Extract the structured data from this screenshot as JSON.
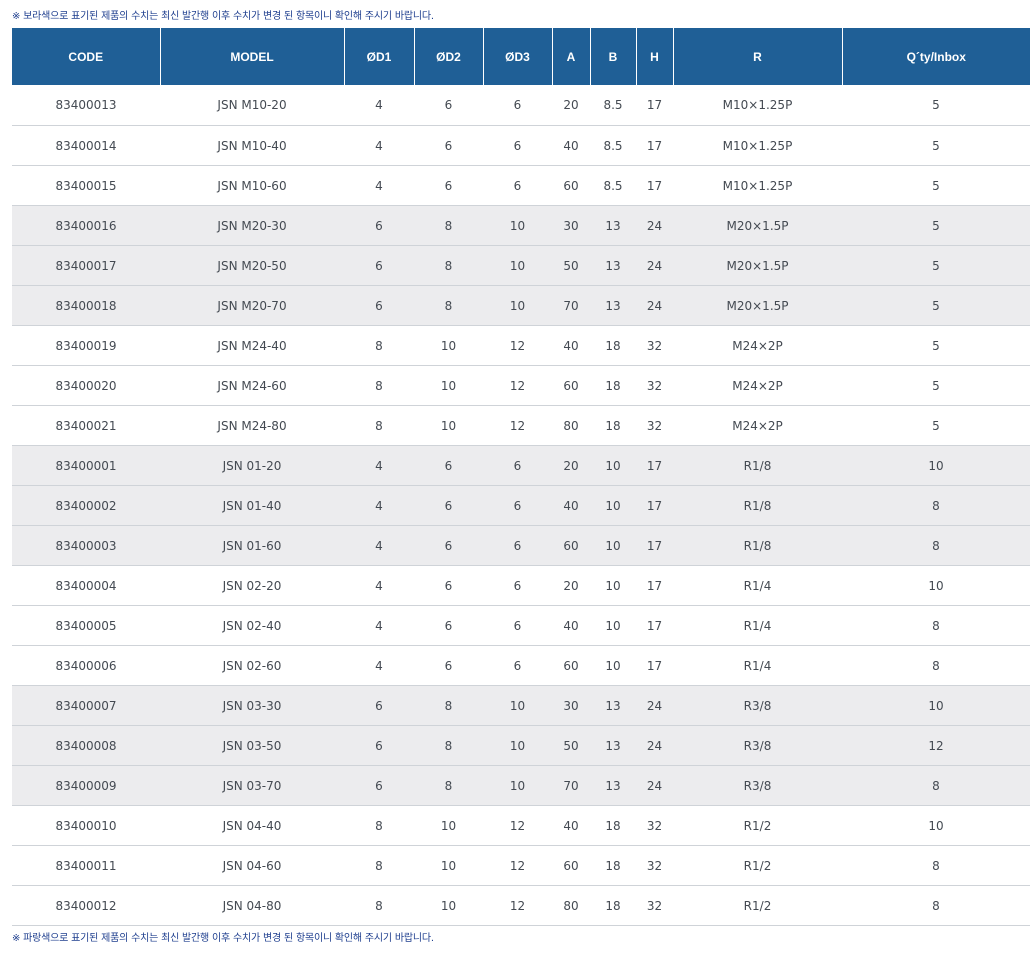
{
  "notes": {
    "top": "※ 보라색으로 표기된 제품의 수치는 최신 발간행 이후 수치가 변경 된 항목이니 확인해 주시기 바랍니다.",
    "bottom": "※ 파랑색으로 표기된 제품의 수치는 최신 발간행 이후 수치가 변경 된 항목이니 확인해 주시기 바랍니다."
  },
  "colors": {
    "header_bg": "#1f5f96",
    "header_text": "#ffffff",
    "note_text": "#1f3f8f",
    "row_shaded": "#ececee",
    "cell_text": "#444a52"
  },
  "table": {
    "headers": [
      "CODE",
      "MODEL",
      "ØD1",
      "ØD2",
      "ØD3",
      "A",
      "B",
      "H",
      "R",
      "Q´ty/Inbox"
    ],
    "rows": [
      {
        "cells": [
          "83400013",
          "JSN M10-20",
          "4",
          "6",
          "6",
          "20",
          "8.5",
          "17",
          "M10×1.25P",
          "5"
        ],
        "shaded": false
      },
      {
        "cells": [
          "83400014",
          "JSN M10-40",
          "4",
          "6",
          "6",
          "40",
          "8.5",
          "17",
          "M10×1.25P",
          "5"
        ],
        "shaded": false
      },
      {
        "cells": [
          "83400015",
          "JSN M10-60",
          "4",
          "6",
          "6",
          "60",
          "8.5",
          "17",
          "M10×1.25P",
          "5"
        ],
        "shaded": false
      },
      {
        "cells": [
          "83400016",
          "JSN M20-30",
          "6",
          "8",
          "10",
          "30",
          "13",
          "24",
          "M20×1.5P",
          "5"
        ],
        "shaded": true
      },
      {
        "cells": [
          "83400017",
          "JSN M20-50",
          "6",
          "8",
          "10",
          "50",
          "13",
          "24",
          "M20×1.5P",
          "5"
        ],
        "shaded": true
      },
      {
        "cells": [
          "83400018",
          "JSN M20-70",
          "6",
          "8",
          "10",
          "70",
          "13",
          "24",
          "M20×1.5P",
          "5"
        ],
        "shaded": true
      },
      {
        "cells": [
          "83400019",
          "JSN M24-40",
          "8",
          "10",
          "12",
          "40",
          "18",
          "32",
          "M24×2P",
          "5"
        ],
        "shaded": false
      },
      {
        "cells": [
          "83400020",
          "JSN M24-60",
          "8",
          "10",
          "12",
          "60",
          "18",
          "32",
          "M24×2P",
          "5"
        ],
        "shaded": false
      },
      {
        "cells": [
          "83400021",
          "JSN M24-80",
          "8",
          "10",
          "12",
          "80",
          "18",
          "32",
          "M24×2P",
          "5"
        ],
        "shaded": false
      },
      {
        "cells": [
          "83400001",
          "JSN 01-20",
          "4",
          "6",
          "6",
          "20",
          "10",
          "17",
          "R1/8",
          "10"
        ],
        "shaded": true
      },
      {
        "cells": [
          "83400002",
          "JSN 01-40",
          "4",
          "6",
          "6",
          "40",
          "10",
          "17",
          "R1/8",
          "8"
        ],
        "shaded": true
      },
      {
        "cells": [
          "83400003",
          "JSN 01-60",
          "4",
          "6",
          "6",
          "60",
          "10",
          "17",
          "R1/8",
          "8"
        ],
        "shaded": true
      },
      {
        "cells": [
          "83400004",
          "JSN 02-20",
          "4",
          "6",
          "6",
          "20",
          "10",
          "17",
          "R1/4",
          "10"
        ],
        "shaded": false
      },
      {
        "cells": [
          "83400005",
          "JSN 02-40",
          "4",
          "6",
          "6",
          "40",
          "10",
          "17",
          "R1/4",
          "8"
        ],
        "shaded": false
      },
      {
        "cells": [
          "83400006",
          "JSN 02-60",
          "4",
          "6",
          "6",
          "60",
          "10",
          "17",
          "R1/4",
          "8"
        ],
        "shaded": false
      },
      {
        "cells": [
          "83400007",
          "JSN 03-30",
          "6",
          "8",
          "10",
          "30",
          "13",
          "24",
          "R3/8",
          "10"
        ],
        "shaded": true
      },
      {
        "cells": [
          "83400008",
          "JSN 03-50",
          "6",
          "8",
          "10",
          "50",
          "13",
          "24",
          "R3/8",
          "12"
        ],
        "shaded": true
      },
      {
        "cells": [
          "83400009",
          "JSN 03-70",
          "6",
          "8",
          "10",
          "70",
          "13",
          "24",
          "R3/8",
          "8"
        ],
        "shaded": true
      },
      {
        "cells": [
          "83400010",
          "JSN 04-40",
          "8",
          "10",
          "12",
          "40",
          "18",
          "32",
          "R1/2",
          "10"
        ],
        "shaded": false
      },
      {
        "cells": [
          "83400011",
          "JSN 04-60",
          "8",
          "10",
          "12",
          "60",
          "18",
          "32",
          "R1/2",
          "8"
        ],
        "shaded": false
      },
      {
        "cells": [
          "83400012",
          "JSN 04-80",
          "8",
          "10",
          "12",
          "80",
          "18",
          "32",
          "R1/2",
          "8"
        ],
        "shaded": false
      }
    ]
  }
}
